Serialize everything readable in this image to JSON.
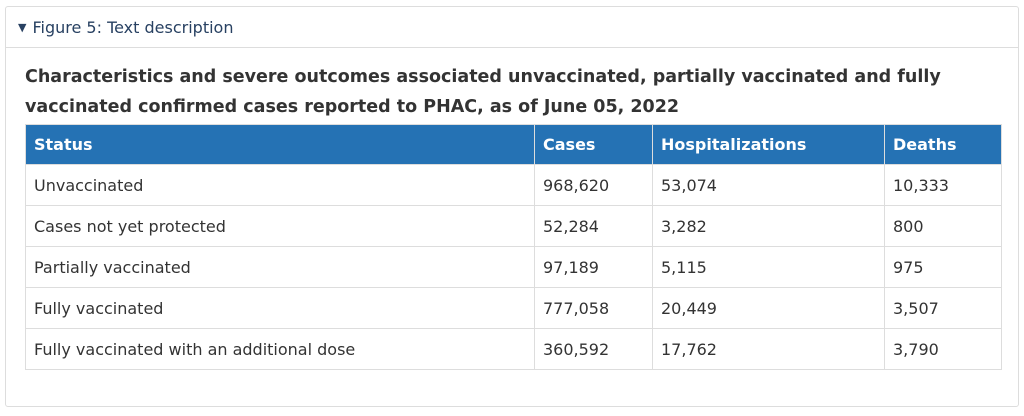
{
  "details": {
    "summary_label": "Figure 5: Text description"
  },
  "table": {
    "caption": "Characteristics and severe outcomes associated unvaccinated, partially vaccinated and fully vaccinated confirmed cases reported to PHAC, as of June 05, 2022",
    "headers": [
      "Status",
      "Cases",
      "Hospitalizations",
      "Deaths"
    ],
    "rows": [
      [
        "Unvaccinated",
        "968,620",
        "53,074",
        "10,333"
      ],
      [
        "Cases not yet protected",
        "52,284",
        "3,282",
        "800"
      ],
      [
        "Partially vaccinated",
        "97,189",
        "5,115",
        "975"
      ],
      [
        "Fully vaccinated",
        "777,058",
        "20,449",
        "3,507"
      ],
      [
        "Fully vaccinated with an additional dose",
        "360,592",
        "17,762",
        "3,790"
      ]
    ]
  },
  "colors": {
    "header_bg": "#2572b4",
    "link": "#284162",
    "border": "#dddddd"
  }
}
